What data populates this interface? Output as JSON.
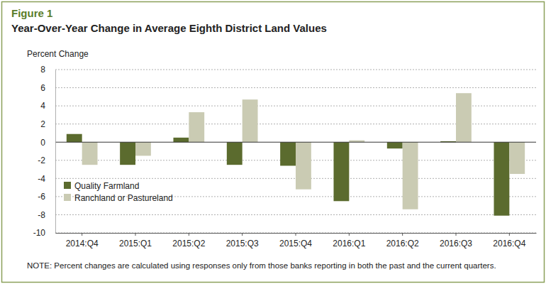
{
  "chart_data": {
    "type": "bar",
    "figure_label": "Figure 1",
    "title": "Year-Over-Year Change in Average Eighth District Land Values",
    "y_label": "Percent Change",
    "note": "NOTE: Percent changes are calculated using responses only from those banks reporting in both the past and the current quarters.",
    "categories": [
      "2014:Q4",
      "2015:Q1",
      "2015:Q2",
      "2015:Q3",
      "2015:Q4",
      "2016:Q1",
      "2016:Q2",
      "2016:Q3",
      "2016:Q4"
    ],
    "series": [
      {
        "name": "Quality Farmland",
        "color": "#5b6b2e",
        "values": [
          0.9,
          -2.5,
          0.5,
          -2.5,
          -2.6,
          -6.5,
          -0.7,
          0.1,
          -8.1
        ]
      },
      {
        "name": "Ranchland or Pastureland",
        "color": "#cacbb3",
        "values": [
          -2.5,
          -1.5,
          3.3,
          4.7,
          -5.2,
          0.2,
          -7.4,
          5.4,
          -3.5
        ]
      }
    ],
    "ylim": [
      -10,
      8
    ],
    "yticks": [
      -10,
      -8,
      -6,
      -4,
      -2,
      0,
      2,
      4,
      6,
      8
    ],
    "grid": true,
    "legend": "lower left"
  }
}
